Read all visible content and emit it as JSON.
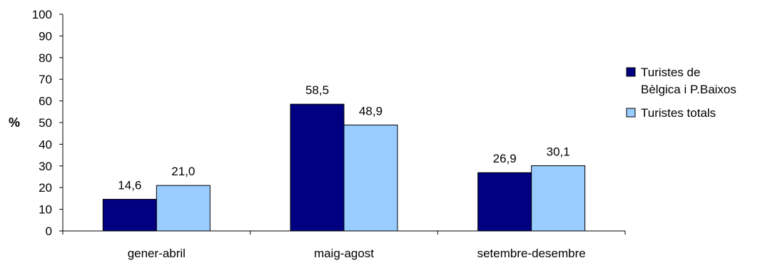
{
  "chart_data": {
    "type": "bar",
    "title": "",
    "xlabel": "",
    "ylabel": "%",
    "ylim": [
      0,
      100
    ],
    "yticks": [
      "0",
      "10",
      "20",
      "30",
      "40",
      "50",
      "60",
      "70",
      "80",
      "90",
      "100"
    ],
    "categories": [
      "gener-abril",
      "maig-agost",
      "setembre-desembre"
    ],
    "series": [
      {
        "name_lines": [
          "Turistes de",
          "Bèlgica i P.Baixos"
        ],
        "color": "#000080",
        "values": [
          14.6,
          58.5,
          26.9
        ],
        "labels": [
          "14,6",
          "58,5",
          "26,9"
        ]
      },
      {
        "name_lines": [
          "Turistes totals"
        ],
        "color": "#99CCFF",
        "values": [
          21.0,
          48.9,
          30.1
        ],
        "labels": [
          "21,0",
          "48,9",
          "30,1"
        ]
      }
    ],
    "grid": false,
    "legend_position": "right"
  }
}
